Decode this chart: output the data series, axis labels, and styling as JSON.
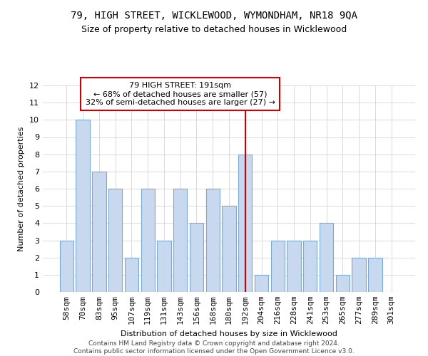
{
  "title": "79, HIGH STREET, WICKLEWOOD, WYMONDHAM, NR18 9QA",
  "subtitle": "Size of property relative to detached houses in Wicklewood",
  "xlabel": "Distribution of detached houses by size in Wicklewood",
  "ylabel": "Number of detached properties",
  "categories": [
    "58sqm",
    "70sqm",
    "83sqm",
    "95sqm",
    "107sqm",
    "119sqm",
    "131sqm",
    "143sqm",
    "156sqm",
    "168sqm",
    "180sqm",
    "192sqm",
    "204sqm",
    "216sqm",
    "228sqm",
    "241sqm",
    "253sqm",
    "265sqm",
    "277sqm",
    "289sqm",
    "301sqm"
  ],
  "values": [
    3,
    10,
    7,
    6,
    2,
    6,
    3,
    6,
    4,
    6,
    5,
    8,
    1,
    3,
    3,
    3,
    4,
    1,
    2,
    2,
    0
  ],
  "highlight_index": 11,
  "bar_color": "#c8d8ee",
  "bar_edge_color": "#7aaad0",
  "annotation_text": "79 HIGH STREET: 191sqm\n← 68% of detached houses are smaller (57)\n32% of semi-detached houses are larger (27) →",
  "annotation_box_facecolor": "#ffffff",
  "annotation_box_edgecolor": "#cc0000",
  "vline_color": "#cc0000",
  "footer_line1": "Contains HM Land Registry data © Crown copyright and database right 2024.",
  "footer_line2": "Contains public sector information licensed under the Open Government Licence v3.0.",
  "ylim": [
    0,
    12
  ],
  "yticks": [
    0,
    1,
    2,
    3,
    4,
    5,
    6,
    7,
    8,
    9,
    10,
    11,
    12
  ],
  "grid_color": "#cccccc",
  "background_color": "#ffffff",
  "title_fontsize": 10,
  "subtitle_fontsize": 9,
  "axis_fontsize": 8,
  "tick_fontsize": 8,
  "annotation_fontsize": 8,
  "footer_fontsize": 6.5
}
